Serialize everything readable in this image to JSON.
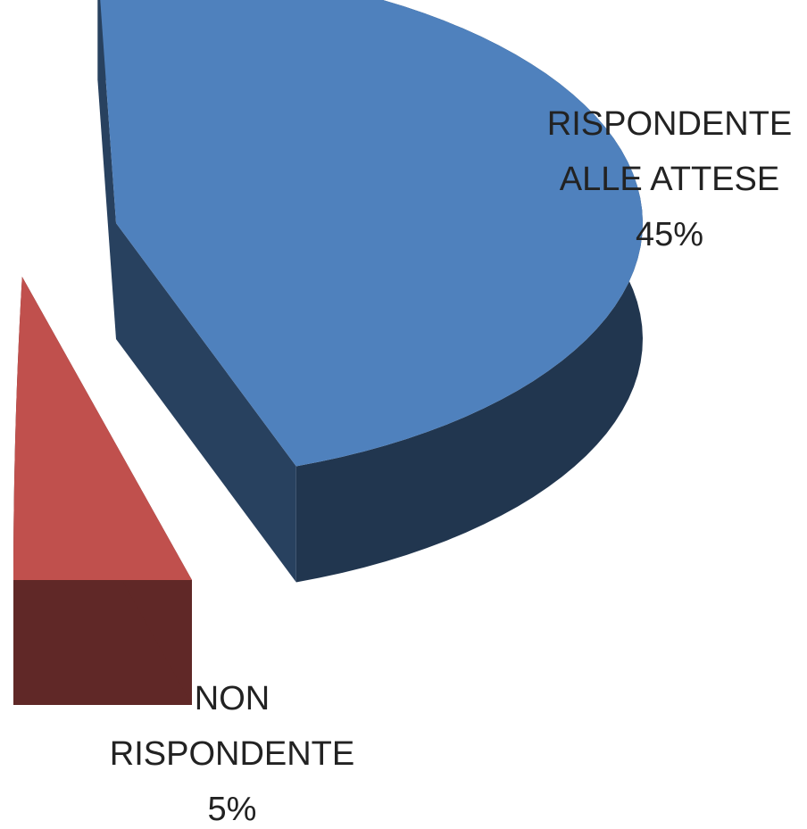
{
  "chart_data": {
    "type": "pie3d",
    "categories": [
      "RISPONDENTE ALLE ATTESE",
      "NON RISPONDENTE"
    ],
    "values": [
      45,
      5
    ],
    "value_labels": [
      "45%",
      "5%"
    ],
    "colors": [
      "#4f81bd",
      "#c0504d"
    ]
  }
}
